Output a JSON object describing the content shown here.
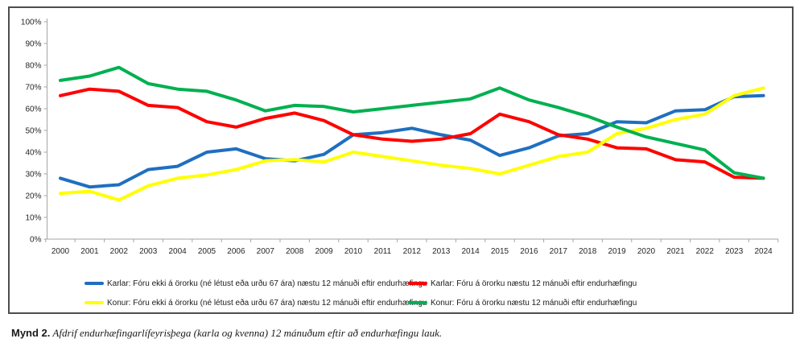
{
  "figure": {
    "caption_label": "Mynd 2.",
    "caption_text": " Afdrif endurhæfingarlífeyrisþega (karla og kvenna) 12 mánuðum eftir að endurhæfingu lauk."
  },
  "chart_data": {
    "type": "line",
    "title": "",
    "xlabel": "",
    "ylabel": "",
    "ylim": [
      0,
      100
    ],
    "ytick_step": 10,
    "ytick_labels": [
      "0%",
      "10%",
      "20%",
      "30%",
      "40%",
      "50%",
      "60%",
      "70%",
      "80%",
      "90%",
      "100%"
    ],
    "grid": false,
    "legend_position": "bottom",
    "x": [
      2000,
      2001,
      2002,
      2003,
      2004,
      2005,
      2006,
      2007,
      2008,
      2009,
      2010,
      2011,
      2012,
      2013,
      2014,
      2015,
      2016,
      2017,
      2018,
      2019,
      2020,
      2021,
      2022,
      2023,
      2024
    ],
    "series": [
      {
        "name": "Karlar: Fóru ekki á örorku (né létust eða urðu 67 ára) næstu 12 mánuði eftir endurhæfingu",
        "color": "#1F6FC0",
        "values": [
          28,
          24,
          25,
          32,
          33.5,
          40,
          41.5,
          37,
          36,
          39,
          48,
          49,
          51,
          48,
          45.5,
          38.5,
          42,
          47.5,
          48.5,
          54,
          53.5,
          59,
          59.5,
          65.5,
          66
        ]
      },
      {
        "name": "Karlar: Fóru á örorku næstu 12 mánuði eftir endurhæfingu",
        "color": "#FF0000",
        "values": [
          66,
          69,
          68,
          61.5,
          60.5,
          54,
          51.5,
          55.5,
          58,
          54.5,
          48,
          46,
          45,
          46,
          48.5,
          57.5,
          54,
          48,
          46,
          42,
          41.5,
          36.5,
          35.5,
          28.5,
          28
        ]
      },
      {
        "name": "Konur: Fóru ekki á örorku (né létust eða urðu 67 ára) næstu 12 mánuði eftir endurhæfingu",
        "color": "#FFFF00",
        "values": [
          21,
          22,
          18,
          24.5,
          28,
          29.5,
          32,
          36,
          36.5,
          35.5,
          40,
          38,
          36,
          34,
          32.5,
          30,
          34,
          38,
          40,
          48.5,
          51,
          55,
          57.5,
          66,
          69.5
        ]
      },
      {
        "name": "Konur: Fóru á örorku næstu 12 mánuði eftir endurhæfingu",
        "color": "#00B050",
        "values": [
          73,
          75,
          79,
          71.5,
          69,
          68,
          64,
          59,
          61.5,
          61,
          58.5,
          60,
          61.5,
          63,
          64.5,
          69.5,
          64,
          60.5,
          56.5,
          51.5,
          47,
          44,
          41,
          30.5,
          28
        ]
      }
    ]
  }
}
